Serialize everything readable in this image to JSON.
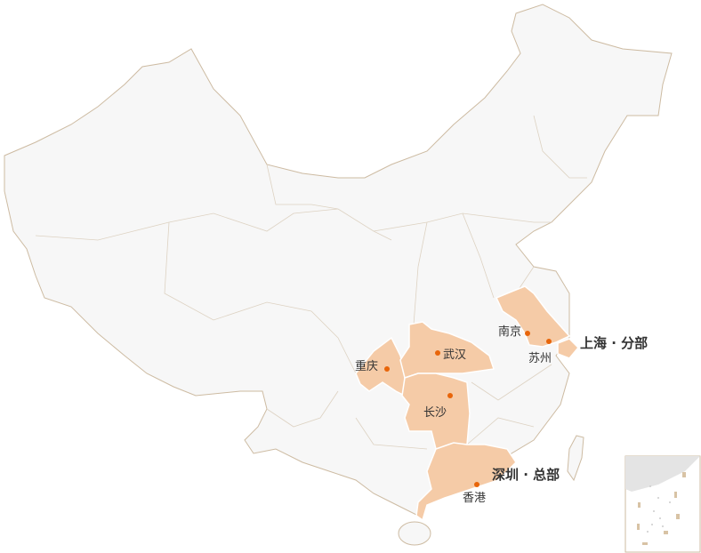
{
  "colors": {
    "land": "#f7f7f7",
    "border": "#cdbba2",
    "highlight": "#f5cba7",
    "marker": "#e8650a",
    "text": "#333333"
  },
  "cities": [
    {
      "name": "南京",
      "id": "nanjing"
    },
    {
      "name": "苏州",
      "id": "suzhou"
    },
    {
      "name": "武汉",
      "id": "wuhan"
    },
    {
      "name": "重庆",
      "id": "chongqing"
    },
    {
      "name": "长沙",
      "id": "changsha"
    },
    {
      "name": "香港",
      "id": "hongkong"
    }
  ],
  "offices": {
    "shanghai": "上海 · 分部",
    "shenzhen": "深圳 · 总部"
  },
  "highlighted_regions": [
    "江苏",
    "上海",
    "重庆",
    "湖北",
    "湖南",
    "广东"
  ]
}
